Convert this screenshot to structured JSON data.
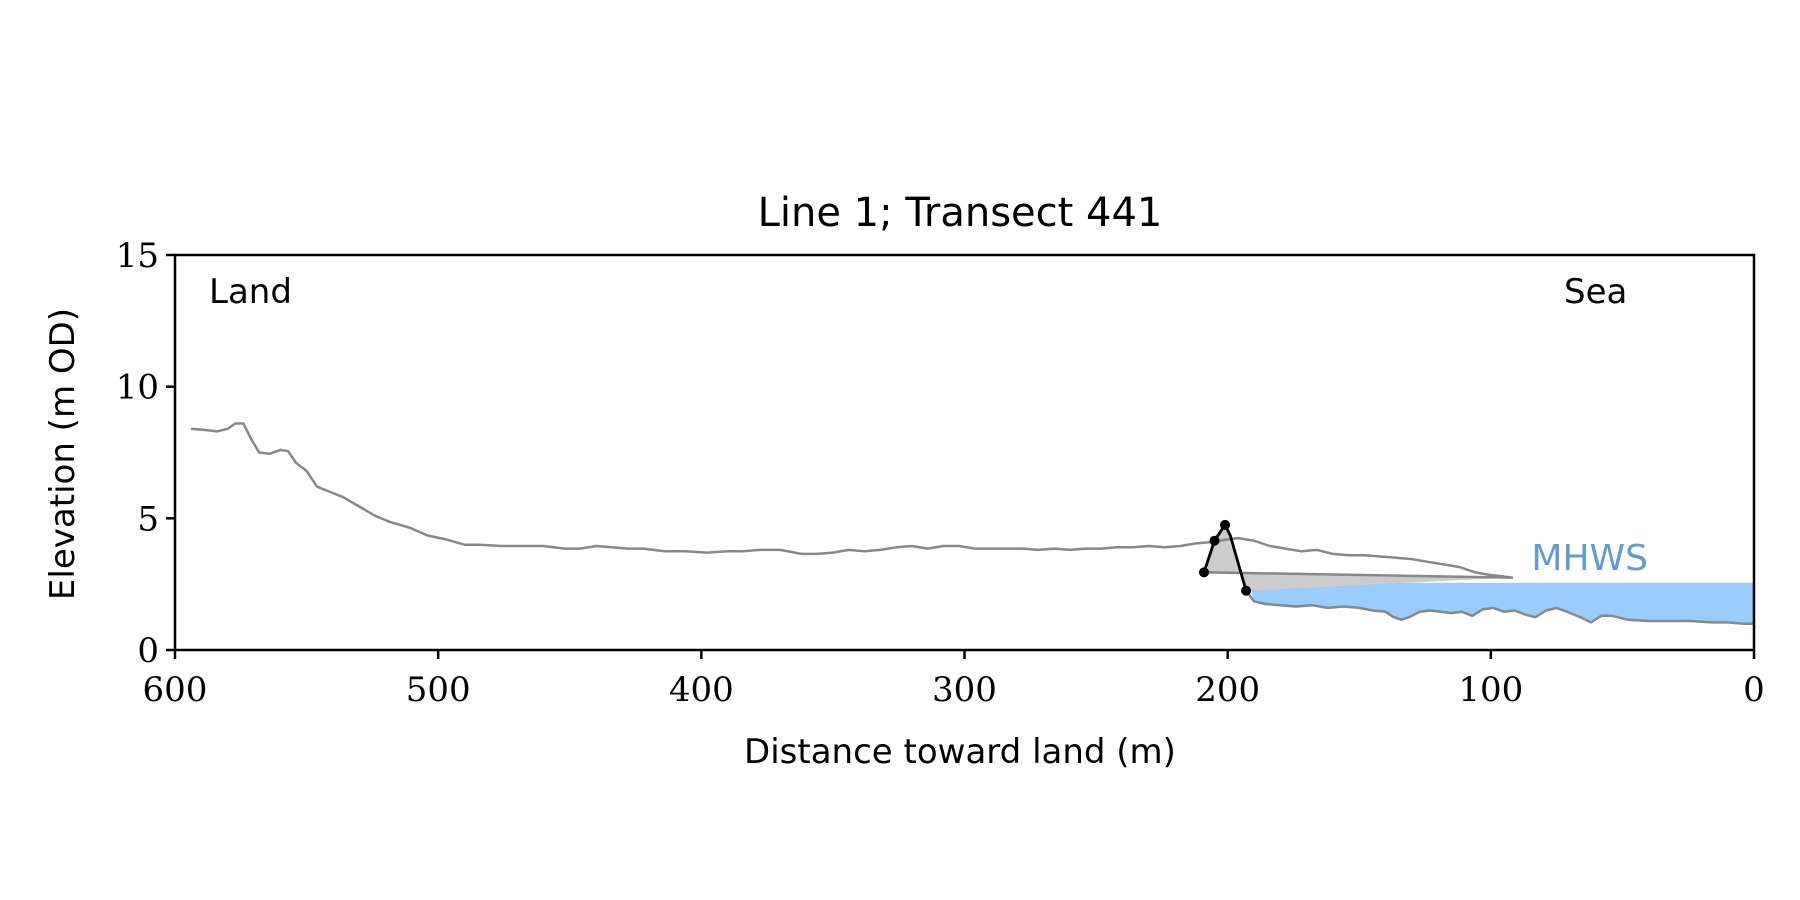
{
  "chart_data": {
    "type": "line",
    "title": "Line 1; Transect 441",
    "xlabel": "Distance toward land (m)",
    "ylabel": "Elevation (m OD)",
    "xlim": [
      600,
      0
    ],
    "ylim": [
      0,
      15
    ],
    "xticks": [
      600,
      500,
      400,
      300,
      200,
      100,
      0
    ],
    "yticks": [
      0,
      5,
      10,
      15
    ],
    "grid": false,
    "annotations": {
      "land": "Land",
      "sea": "Sea",
      "mhws_label": "MHWS"
    },
    "mhws_level": 2.55,
    "mhws_extent": [
      192,
      0
    ],
    "colors": {
      "profile": "#888888",
      "dune": "#000000",
      "dune_fill": "#cccccc",
      "sea_fill": "#99ccff",
      "mhws_text": "#6699cc",
      "axes": "#000000"
    },
    "profile": [
      [
        594,
        8.4
      ],
      [
        588,
        8.35
      ],
      [
        584,
        8.3
      ],
      [
        580,
        8.4
      ],
      [
        577,
        8.6
      ],
      [
        574,
        8.6
      ],
      [
        571,
        8.0
      ],
      [
        568,
        7.5
      ],
      [
        564,
        7.45
      ],
      [
        560,
        7.6
      ],
      [
        557,
        7.55
      ],
      [
        554,
        7.1
      ],
      [
        550,
        6.8
      ],
      [
        546,
        6.2
      ],
      [
        541,
        6.0
      ],
      [
        536,
        5.8
      ],
      [
        530,
        5.45
      ],
      [
        524,
        5.1
      ],
      [
        518,
        4.85
      ],
      [
        511,
        4.65
      ],
      [
        504,
        4.35
      ],
      [
        497,
        4.2
      ],
      [
        490,
        4.0
      ],
      [
        484,
        4.0
      ],
      [
        476,
        3.95
      ],
      [
        468,
        3.95
      ],
      [
        460,
        3.95
      ],
      [
        452,
        3.85
      ],
      [
        446,
        3.85
      ],
      [
        440,
        3.95
      ],
      [
        434,
        3.9
      ],
      [
        428,
        3.85
      ],
      [
        422,
        3.85
      ],
      [
        414,
        3.75
      ],
      [
        406,
        3.75
      ],
      [
        398,
        3.7
      ],
      [
        390,
        3.75
      ],
      [
        384,
        3.75
      ],
      [
        378,
        3.8
      ],
      [
        370,
        3.8
      ],
      [
        362,
        3.65
      ],
      [
        356,
        3.65
      ],
      [
        350,
        3.7
      ],
      [
        344,
        3.8
      ],
      [
        338,
        3.75
      ],
      [
        332,
        3.8
      ],
      [
        326,
        3.9
      ],
      [
        320,
        3.95
      ],
      [
        314,
        3.85
      ],
      [
        308,
        3.95
      ],
      [
        302,
        3.95
      ],
      [
        296,
        3.85
      ],
      [
        290,
        3.85
      ],
      [
        284,
        3.85
      ],
      [
        278,
        3.85
      ],
      [
        272,
        3.8
      ],
      [
        266,
        3.85
      ],
      [
        260,
        3.8
      ],
      [
        254,
        3.85
      ],
      [
        248,
        3.85
      ],
      [
        242,
        3.9
      ],
      [
        236,
        3.9
      ],
      [
        230,
        3.95
      ],
      [
        224,
        3.9
      ],
      [
        218,
        3.95
      ],
      [
        212,
        4.05
      ],
      [
        206,
        4.1
      ],
      [
        200,
        4.2
      ],
      [
        196,
        4.25
      ],
      [
        190,
        4.15
      ],
      [
        184,
        3.95
      ],
      [
        178,
        3.85
      ],
      [
        172,
        3.75
      ],
      [
        166,
        3.8
      ],
      [
        160,
        3.65
      ],
      [
        154,
        3.6
      ],
      [
        148,
        3.6
      ],
      [
        142,
        3.55
      ],
      [
        136,
        3.5
      ],
      [
        130,
        3.45
      ],
      [
        124,
        3.35
      ],
      [
        118,
        3.25
      ],
      [
        112,
        3.15
      ],
      [
        106,
        2.95
      ],
      [
        100,
        2.85
      ],
      [
        96,
        2.8
      ],
      [
        92,
        2.75
      ]
    ],
    "dune": [
      [
        209,
        2.95
      ],
      [
        205,
        4.15
      ],
      [
        201,
        4.75
      ],
      [
        199,
        4.35
      ],
      [
        193,
        2.25
      ]
    ],
    "nearshore": [
      [
        193,
        2.25
      ],
      [
        190,
        1.85
      ],
      [
        186,
        1.75
      ],
      [
        180,
        1.7
      ],
      [
        174,
        1.65
      ],
      [
        168,
        1.7
      ],
      [
        162,
        1.6
      ],
      [
        156,
        1.65
      ],
      [
        150,
        1.6
      ],
      [
        145,
        1.5
      ],
      [
        140,
        1.45
      ],
      [
        137,
        1.25
      ],
      [
        134,
        1.15
      ],
      [
        131,
        1.25
      ],
      [
        127,
        1.45
      ],
      [
        123,
        1.5
      ],
      [
        119,
        1.45
      ],
      [
        115,
        1.4
      ],
      [
        111,
        1.45
      ],
      [
        107,
        1.3
      ],
      [
        103,
        1.55
      ],
      [
        99,
        1.6
      ],
      [
        95,
        1.45
      ],
      [
        91,
        1.5
      ],
      [
        87,
        1.35
      ],
      [
        83,
        1.25
      ],
      [
        79,
        1.5
      ],
      [
        75,
        1.6
      ],
      [
        71,
        1.45
      ],
      [
        66,
        1.25
      ],
      [
        62,
        1.05
      ],
      [
        58,
        1.3
      ],
      [
        54,
        1.3
      ],
      [
        48,
        1.15
      ],
      [
        40,
        1.1
      ],
      [
        32,
        1.1
      ],
      [
        24,
        1.1
      ],
      [
        16,
        1.05
      ],
      [
        10,
        1.05
      ],
      [
        4,
        1.0
      ],
      [
        0,
        1.0
      ]
    ]
  }
}
